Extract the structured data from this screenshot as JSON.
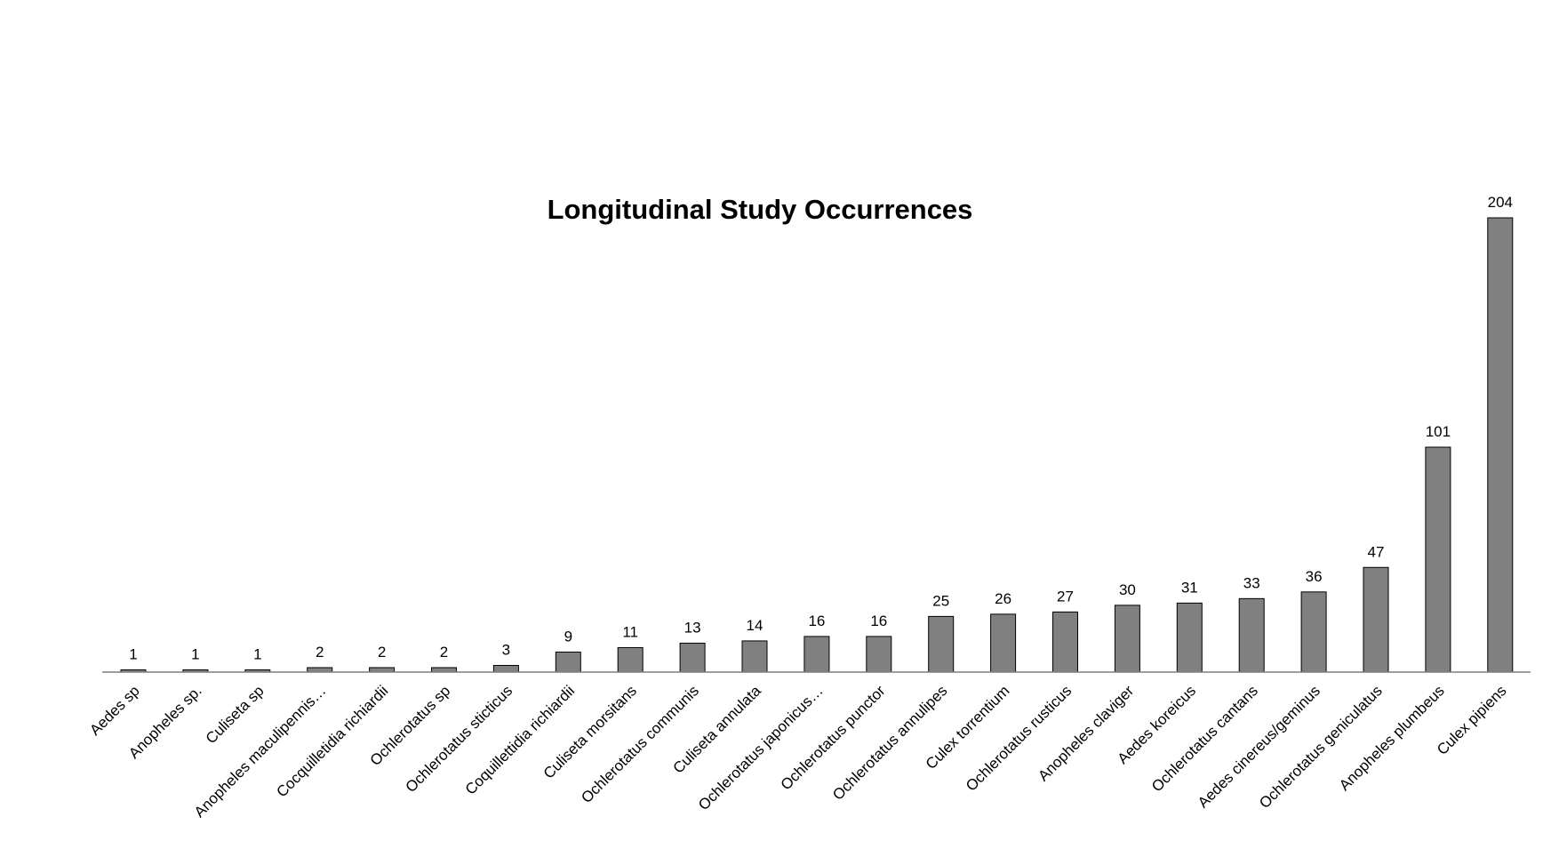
{
  "chart_data": {
    "type": "bar",
    "title": "Longitudinal Study Occurrences",
    "xlabel": "",
    "ylabel": "",
    "ylim": [
      0,
      204
    ],
    "grid": false,
    "legend": "none",
    "bar_color": "#808080",
    "bar_edge_color": "#000000",
    "categories": [
      "Aedes sp",
      "Anopheles sp.",
      "Culiseta sp",
      "Anopheles maculipennis…",
      "Cocquilletidia richiardii",
      "Ochlerotatus sp",
      "Ochlerotatus sticticus",
      "Coquillettidia richiardii",
      "Culiseta morsitans",
      "Ochlerotatus communis",
      "Culiseta annulata",
      "Ochlerotatus japonicus…",
      "Ochlerotatus punctor",
      "Ochlerotatus annulipes",
      "Culex torrentium",
      "Ochlerotatus rusticus",
      "Anopheles claviger",
      "Aedes koreicus",
      "Ochlerotatus cantans",
      "Aedes cinereus/geminus",
      "Ochlerotatus geniculatus",
      "Anopheles plumbeus",
      "Culex pipiens"
    ],
    "values": [
      1,
      1,
      1,
      2,
      2,
      2,
      3,
      9,
      11,
      13,
      14,
      16,
      16,
      25,
      26,
      27,
      30,
      31,
      33,
      36,
      47,
      101,
      204
    ]
  }
}
